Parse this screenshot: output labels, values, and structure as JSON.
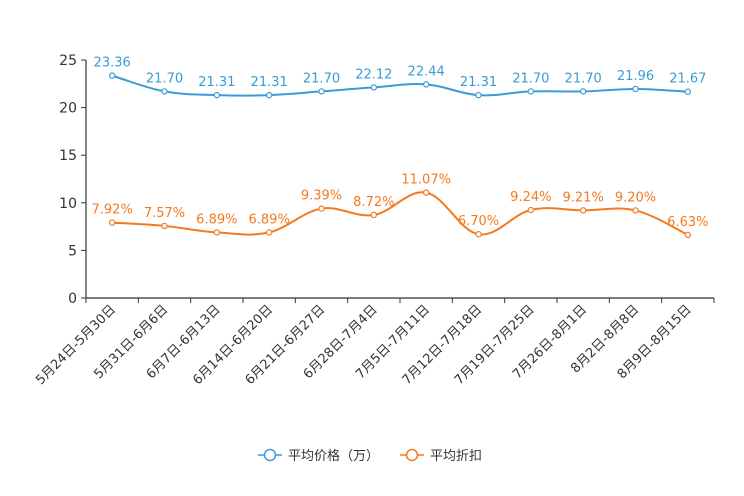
{
  "chart_data": {
    "type": "line",
    "title": "",
    "xlabel": "",
    "ylabel": "",
    "ylim": [
      0,
      25
    ],
    "yticks": [
      0,
      5,
      10,
      15,
      20,
      25
    ],
    "grid": false,
    "legend_position": "bottom-center",
    "categories": [
      "5月24日-5月30日",
      "5月31日-6月6日",
      "6月7日-6月13日",
      "6月14日-6月20日",
      "6月21日-6月27日",
      "6月28日-7月4日",
      "7月5日-7月11日",
      "7月12日-7月18日",
      "7月19日-7月25日",
      "7月26日-8月1日",
      "8月2日-8月8日",
      "8月9日-8月15日"
    ],
    "series": [
      {
        "name": "平均价格（万）",
        "color": "#3a9bd5",
        "values": [
          23.36,
          21.7,
          21.31,
          21.31,
          21.7,
          22.12,
          22.44,
          21.31,
          21.7,
          21.7,
          21.96,
          21.67
        ],
        "labels": [
          "23.36",
          "21.70",
          "21.31",
          "21.31",
          "21.70",
          "22.12",
          "22.44",
          "21.31",
          "21.70",
          "21.70",
          "21.96",
          "21.67"
        ]
      },
      {
        "name": "平均折扣",
        "color": "#f47a1f",
        "values": [
          7.92,
          7.57,
          6.89,
          6.89,
          9.39,
          8.72,
          11.07,
          6.7,
          9.24,
          9.21,
          9.2,
          6.63
        ],
        "labels": [
          "7.92%",
          "7.57%",
          "6.89%",
          "6.89%",
          "9.39%",
          "8.72%",
          "11.07%",
          "6.70%",
          "9.24%",
          "9.21%",
          "9.20%",
          "6.63%"
        ]
      }
    ]
  }
}
